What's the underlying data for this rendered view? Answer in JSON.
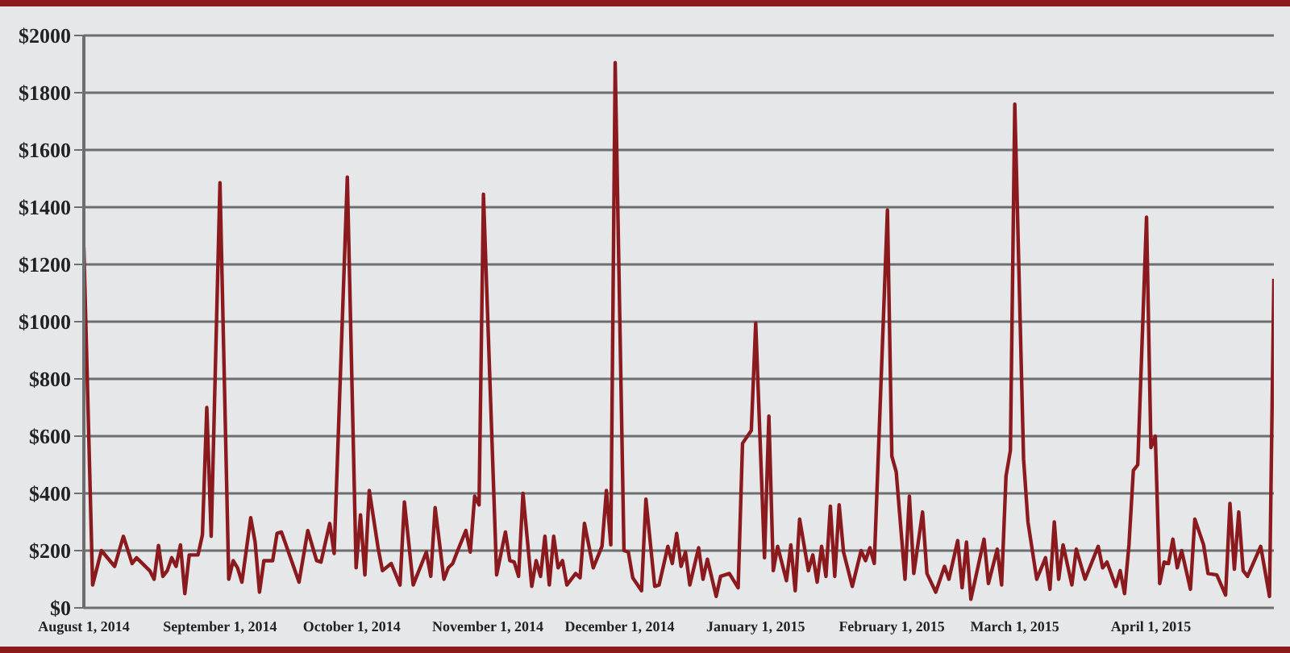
{
  "chart_data": {
    "type": "line",
    "x": [
      "2014-08-01",
      "2014-08-03",
      "2014-08-05",
      "2014-08-08",
      "2014-08-10",
      "2014-08-12",
      "2014-08-13",
      "2014-08-16",
      "2014-08-17",
      "2014-08-18",
      "2014-08-19",
      "2014-08-20",
      "2014-08-21",
      "2014-08-22",
      "2014-08-23",
      "2014-08-24",
      "2014-08-25",
      "2014-08-27",
      "2014-08-28",
      "2014-08-29",
      "2014-08-30",
      "2014-09-01",
      "2014-09-03",
      "2014-09-04",
      "2014-09-05",
      "2014-09-06",
      "2014-09-08",
      "2014-09-09",
      "2014-09-10",
      "2014-09-11",
      "2014-09-13",
      "2014-09-14",
      "2014-09-15",
      "2014-09-19",
      "2014-09-21",
      "2014-09-23",
      "2014-09-24",
      "2014-09-26",
      "2014-09-27",
      "2014-09-30",
      "2014-10-02",
      "2014-10-03",
      "2014-10-04",
      "2014-10-05",
      "2014-10-07",
      "2014-10-08",
      "2014-10-10",
      "2014-10-12",
      "2014-10-13",
      "2014-10-15",
      "2014-10-18",
      "2014-10-19",
      "2014-10-20",
      "2014-10-22",
      "2014-10-23",
      "2014-10-24",
      "2014-10-25",
      "2014-10-27",
      "2014-10-28",
      "2014-10-29",
      "2014-10-30",
      "2014-10-31",
      "2014-11-03",
      "2014-11-05",
      "2014-11-06",
      "2014-11-07",
      "2014-11-08",
      "2014-11-09",
      "2014-11-11",
      "2014-11-12",
      "2014-11-13",
      "2014-11-14",
      "2014-11-15",
      "2014-11-16",
      "2014-11-17",
      "2014-11-18",
      "2014-11-19",
      "2014-11-21",
      "2014-11-22",
      "2014-11-23",
      "2014-11-25",
      "2014-11-27",
      "2014-11-28",
      "2014-11-29",
      "2014-11-30",
      "2014-12-02",
      "2014-12-03",
      "2014-12-04",
      "2014-12-06",
      "2014-12-07",
      "2014-12-09",
      "2014-12-10",
      "2014-12-12",
      "2014-12-13",
      "2014-12-14",
      "2014-12-15",
      "2014-12-16",
      "2014-12-17",
      "2014-12-19",
      "2014-12-20",
      "2014-12-21",
      "2014-12-23",
      "2014-12-24",
      "2014-12-26",
      "2014-12-28",
      "2014-12-29",
      "2014-12-31",
      "2015-01-01",
      "2015-01-03",
      "2015-01-04",
      "2015-01-05",
      "2015-01-06",
      "2015-01-08",
      "2015-01-09",
      "2015-01-10",
      "2015-01-11",
      "2015-01-13",
      "2015-01-14",
      "2015-01-15",
      "2015-01-16",
      "2015-01-17",
      "2015-01-18",
      "2015-01-19",
      "2015-01-20",
      "2015-01-21",
      "2015-01-23",
      "2015-01-25",
      "2015-01-26",
      "2015-01-27",
      "2015-01-28",
      "2015-01-31",
      "2015-02-01",
      "2015-02-02",
      "2015-02-04",
      "2015-02-05",
      "2015-02-06",
      "2015-02-08",
      "2015-02-09",
      "2015-02-11",
      "2015-02-13",
      "2015-02-14",
      "2015-02-16",
      "2015-02-17",
      "2015-02-18",
      "2015-02-19",
      "2015-02-22",
      "2015-02-23",
      "2015-02-25",
      "2015-02-26",
      "2015-02-27",
      "2015-02-28",
      "2015-03-01",
      "2015-03-03",
      "2015-03-04",
      "2015-03-06",
      "2015-03-08",
      "2015-03-09",
      "2015-03-10",
      "2015-03-11",
      "2015-03-12",
      "2015-03-14",
      "2015-03-15",
      "2015-03-17",
      "2015-03-20",
      "2015-03-21",
      "2015-03-22",
      "2015-03-24",
      "2015-03-25",
      "2015-03-26",
      "2015-03-27",
      "2015-03-28",
      "2015-03-29",
      "2015-03-31",
      "2015-04-01",
      "2015-04-02",
      "2015-04-03",
      "2015-04-04",
      "2015-04-05",
      "2015-04-06",
      "2015-04-07",
      "2015-04-08",
      "2015-04-10",
      "2015-04-11",
      "2015-04-13",
      "2015-04-14",
      "2015-04-16",
      "2015-04-18",
      "2015-04-19",
      "2015-04-20",
      "2015-04-21",
      "2015-04-22",
      "2015-04-23",
      "2015-04-26",
      "2015-04-28",
      "2015-04-29"
    ],
    "series": [
      {
        "color": "#8b1a1f",
        "values": [
          1260,
          80,
          200,
          145,
          250,
          155,
          175,
          130,
          100,
          218,
          110,
          130,
          175,
          145,
          220,
          50,
          185,
          185,
          255,
          700,
          250,
          1485,
          100,
          165,
          140,
          90,
          315,
          230,
          55,
          165,
          165,
          260,
          265,
          90,
          270,
          165,
          160,
          295,
          190,
          1505,
          140,
          325,
          115,
          410,
          210,
          130,
          155,
          80,
          370,
          80,
          195,
          110,
          350,
          100,
          140,
          155,
          195,
          270,
          195,
          390,
          360,
          1445,
          115,
          265,
          165,
          160,
          110,
          400,
          75,
          165,
          110,
          250,
          80,
          250,
          140,
          165,
          80,
          120,
          105,
          295,
          140,
          215,
          410,
          220,
          1905,
          200,
          195,
          105,
          60,
          380,
          75,
          80,
          215,
          155,
          260,
          145,
          195,
          80,
          210,
          100,
          170,
          40,
          110,
          120,
          70,
          575,
          620,
          995,
          175,
          670,
          130,
          215,
          95,
          220,
          60,
          310,
          130,
          185,
          90,
          215,
          110,
          355,
          110,
          360,
          195,
          75,
          200,
          165,
          210,
          155,
          1390,
          530,
          475,
          100,
          390,
          120,
          335,
          120,
          55,
          145,
          100,
          235,
          70,
          230,
          30,
          240,
          85,
          205,
          80,
          460,
          550,
          1760,
          520,
          300,
          100,
          175,
          65,
          300,
          100,
          220,
          80,
          205,
          100,
          215,
          140,
          160,
          75,
          130,
          50,
          220,
          480,
          500,
          1365,
          560,
          600,
          85,
          160,
          155,
          240,
          140,
          200,
          65,
          310,
          220,
          120,
          115,
          45,
          365,
          135,
          335,
          130,
          110,
          215,
          40,
          1150
        ]
      }
    ],
    "xlim": [
      "2014-08-01",
      "2015-04-29"
    ],
    "xticks": [
      {
        "value": "2014-08-01",
        "label": "August 1, 2014"
      },
      {
        "value": "2014-09-01",
        "label": "September 1, 2014"
      },
      {
        "value": "2014-10-01",
        "label": "October 1, 2014"
      },
      {
        "value": "2014-11-01",
        "label": "November 1, 2014"
      },
      {
        "value": "2014-12-01",
        "label": "December 1, 2014"
      },
      {
        "value": "2015-01-01",
        "label": "January 1, 2015"
      },
      {
        "value": "2015-02-01",
        "label": "February 1, 2015"
      },
      {
        "value": "2015-03-01",
        "label": "March 1, 2015"
      },
      {
        "value": "2015-04-01",
        "label": "April 1, 2015"
      }
    ],
    "ylim": [
      0,
      2000
    ],
    "yticks": [
      {
        "value": 0,
        "label": "$0"
      },
      {
        "value": 200,
        "label": "$200"
      },
      {
        "value": 400,
        "label": "$400"
      },
      {
        "value": 600,
        "label": "$600"
      },
      {
        "value": 800,
        "label": "$800"
      },
      {
        "value": 1000,
        "label": "$1000"
      },
      {
        "value": 1200,
        "label": "$1200"
      },
      {
        "value": 1400,
        "label": "$1400"
      },
      {
        "value": 1600,
        "label": "$1600"
      },
      {
        "value": 1800,
        "label": "$1800"
      },
      {
        "value": 2000,
        "label": "$2000"
      }
    ],
    "grid": "y",
    "legend": false,
    "marker": "none",
    "line_style": "solid"
  }
}
